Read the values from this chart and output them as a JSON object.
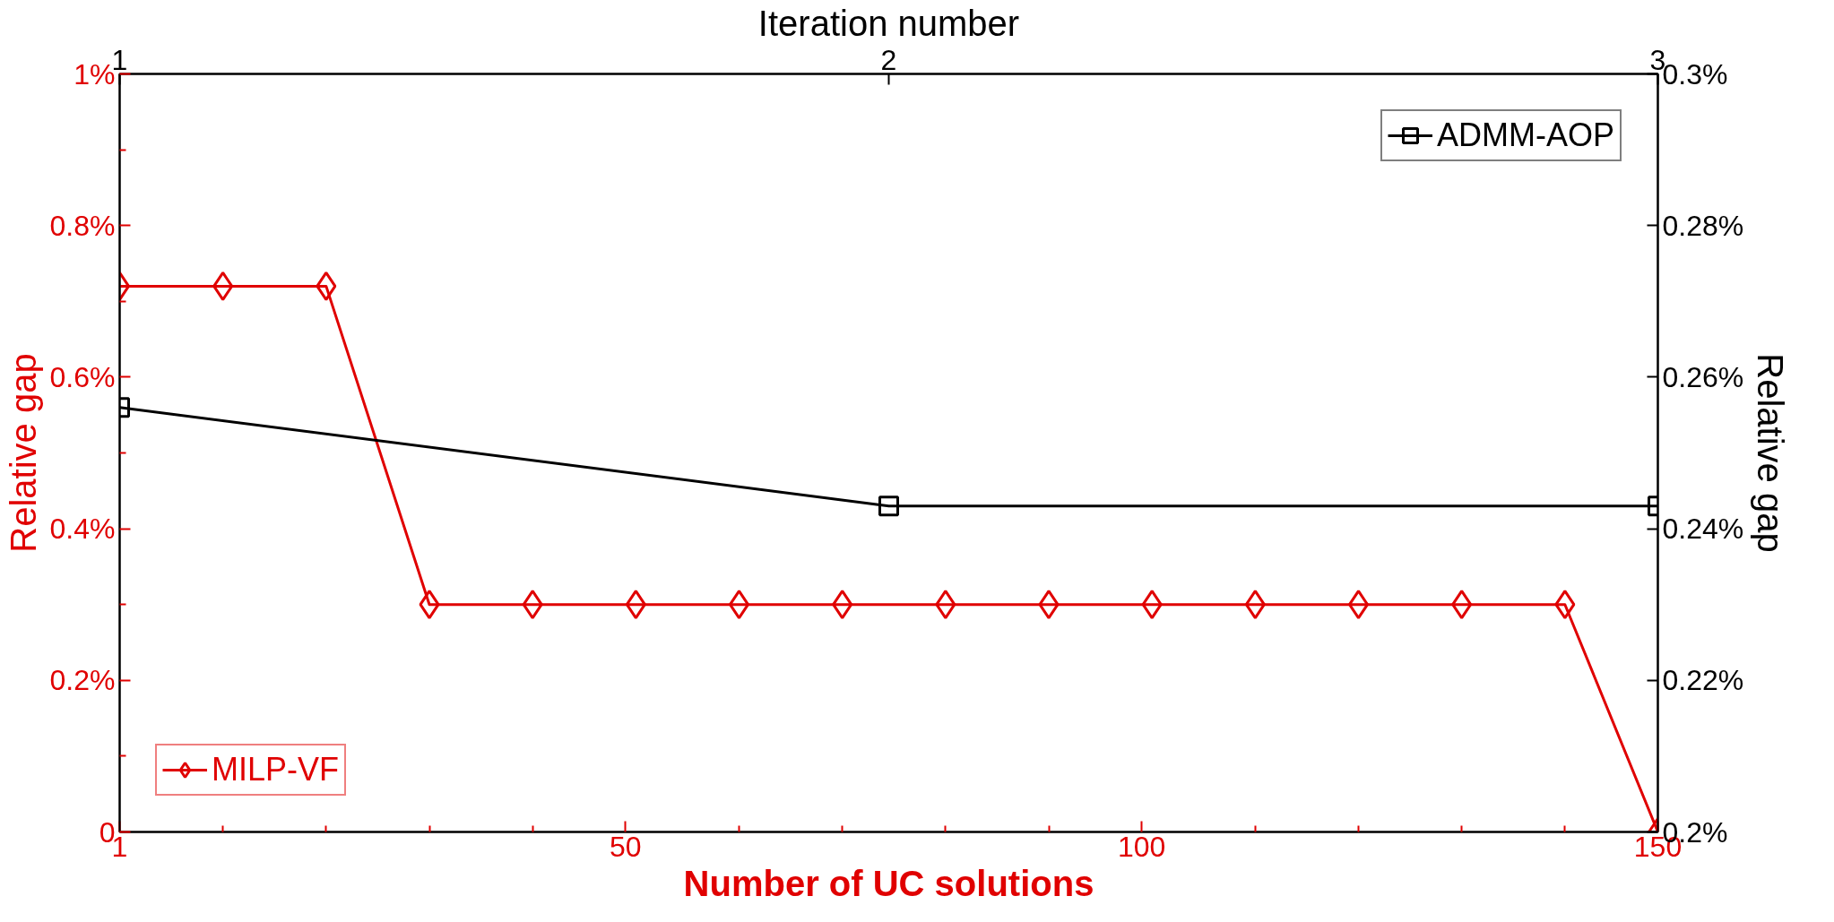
{
  "chart_data": {
    "type": "line",
    "xlabel": "Number of UC solutions",
    "x2label": "Iteration number",
    "ylabel": "Relative gap",
    "y2label": "Relative gap",
    "x": [
      1,
      11,
      21,
      31,
      41,
      51,
      61,
      71,
      81,
      91,
      101,
      111,
      121,
      131,
      141,
      150
    ],
    "xlim": [
      1,
      150
    ],
    "xticks": [
      1,
      {
        "value": 11,
        "label": null
      },
      {
        "value": 21,
        "label": null
      },
      {
        "value": 31,
        "label": null
      },
      {
        "value": 41,
        "label": null
      },
      50,
      {
        "value": 61,
        "label": null
      },
      {
        "value": 71,
        "label": null
      },
      {
        "value": 81,
        "label": null
      },
      {
        "value": 91,
        "label": null
      },
      100,
      {
        "value": 111,
        "label": null
      },
      {
        "value": 121,
        "label": null
      },
      {
        "value": 131,
        "label": null
      },
      {
        "value": 141,
        "label": null
      },
      150
    ],
    "x2lim": [
      1,
      3
    ],
    "x2ticks": [
      1,
      2,
      3
    ],
    "ylim": [
      0,
      1
    ],
    "yticks": [
      0,
      {
        "value": 0.1,
        "label": null
      },
      {
        "value": 0.2,
        "label": "0.2%"
      },
      {
        "value": 0.3,
        "label": null
      },
      {
        "value": 0.4,
        "label": "0.4%"
      },
      {
        "value": 0.5,
        "label": null
      },
      {
        "value": 0.6,
        "label": "0.6%"
      },
      {
        "value": 0.7,
        "label": null
      },
      {
        "value": 0.8,
        "label": "0.8%"
      },
      {
        "value": 0.9,
        "label": null
      },
      {
        "value": 1,
        "label": "1%"
      }
    ],
    "y2lim": [
      0.2,
      0.3
    ],
    "y2ticks": [
      {
        "value": 0.2,
        "label": "0.2%"
      },
      {
        "value": 0.22,
        "label": "0.22%"
      },
      {
        "value": 0.24,
        "label": "0.24%"
      },
      {
        "value": 0.26,
        "label": "0.26%"
      },
      {
        "value": 0.28,
        "label": "0.28%"
      },
      {
        "value": 0.3,
        "label": "0.3%"
      }
    ],
    "line_style": "solid",
    "legend": "top right",
    "series": [
      {
        "name": "MILP-VF",
        "color": "#e00000",
        "marker": "diamond",
        "values": [
          0.72,
          0.72,
          0.72,
          0.3,
          0.3,
          0.3,
          0.3,
          0.3,
          0.3,
          0.3,
          0.3,
          0.3,
          0.3,
          0.3,
          0.3,
          0
        ]
      },
      {
        "name": "ADMM-AOP",
        "color": "#000000",
        "marker": "square",
        "axis": "y2",
        "x": [
          1,
          75.5,
          150
        ],
        "values": [
          0.256,
          0.243,
          0.243
        ]
      }
    ]
  }
}
